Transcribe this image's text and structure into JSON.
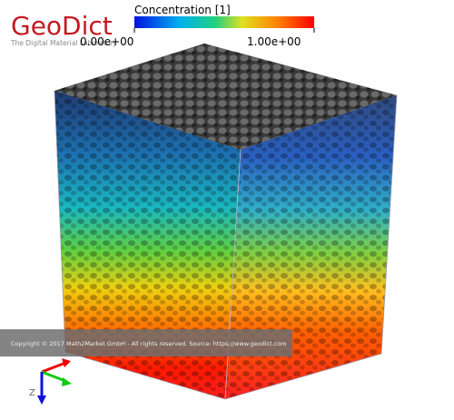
{
  "logo": {
    "name": "GeoDict",
    "tagline": "The Digital Material Laboratory"
  },
  "colorbar": {
    "title": "Concentration [1]",
    "min_label": "0.00e+00",
    "max_label": "1.00e+00"
  },
  "copyright": "Copyright © 2017 Math2Market GmbH - All rights reserved. Source: https://www.geodict.com",
  "axes": {
    "z_label": "Z"
  }
}
